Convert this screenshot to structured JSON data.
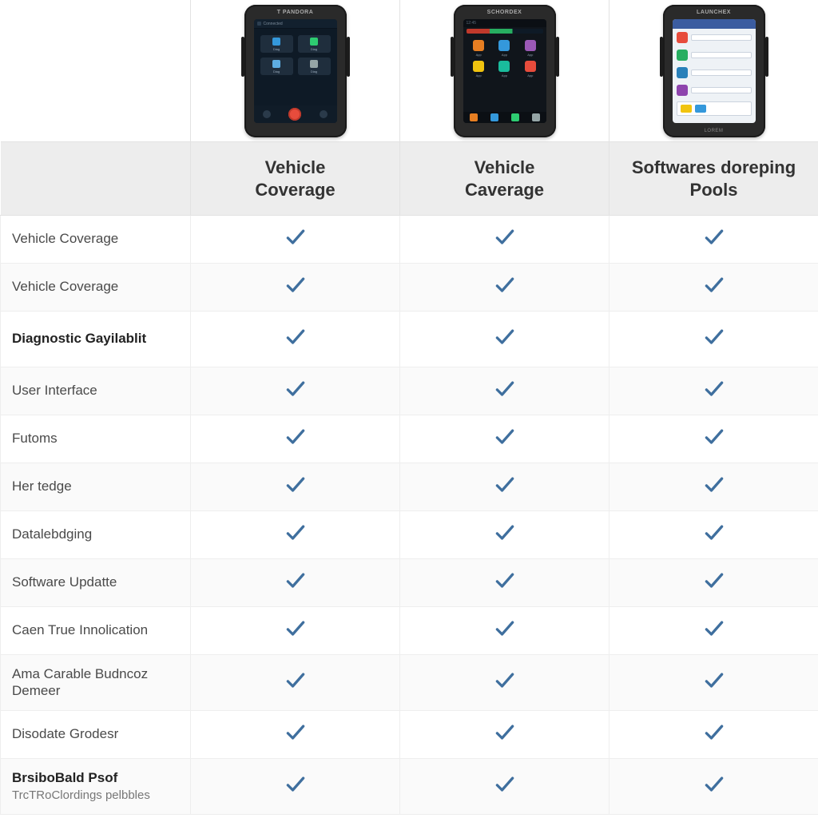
{
  "colors": {
    "check_stroke": "#3f6f9e",
    "header_bg": "#ededed",
    "row_alt_bg": "#fafafa",
    "border": "#e2e2e2",
    "text": "#333333"
  },
  "columns": [
    {
      "header_line1": "Vehicle",
      "header_line2": "Coverage",
      "device_brand": "T PANDORA"
    },
    {
      "header_line1": "Vehicle",
      "header_line2": "Caverage",
      "device_brand": "SCHORDEX"
    },
    {
      "header_line1": "Softwares doreping",
      "header_line2": "Pools",
      "device_brand": "LAUNCHEX",
      "device_footer": "LOREM"
    }
  ],
  "features": [
    {
      "label": "Vehicle Coverage",
      "bold": false,
      "checks": [
        true,
        true,
        true
      ]
    },
    {
      "label": "Vehicle Coverage",
      "bold": false,
      "checks": [
        true,
        true,
        true
      ]
    },
    {
      "label": "Diagnostic Gayilablit",
      "bold": true,
      "checks": [
        true,
        true,
        true
      ],
      "tall": true
    },
    {
      "label": "User Interface",
      "bold": false,
      "checks": [
        true,
        true,
        true
      ]
    },
    {
      "label": "Futoms",
      "bold": false,
      "checks": [
        true,
        true,
        true
      ]
    },
    {
      "label": "Her tedge",
      "bold": false,
      "checks": [
        true,
        true,
        true
      ]
    },
    {
      "label": "Datalebdging",
      "bold": false,
      "checks": [
        true,
        true,
        true
      ]
    },
    {
      "label": "Software Updatte",
      "bold": false,
      "checks": [
        true,
        true,
        true
      ]
    },
    {
      "label": "Caen True Innolication",
      "bold": false,
      "checks": [
        true,
        true,
        true
      ]
    },
    {
      "label": "Ama Carable Budncoz Demeer",
      "bold": false,
      "checks": [
        true,
        true,
        true
      ],
      "tall": true
    },
    {
      "label": "Disodate Grodesr",
      "bold": false,
      "checks": [
        true,
        true,
        true
      ]
    },
    {
      "label": "BrsiboBald Psof",
      "sublabel": "TrcTRoClordings pelbbles",
      "bold": true,
      "checks": [
        true,
        true,
        true
      ],
      "tall": true
    }
  ],
  "deviceA_tiles": [
    {
      "bg": "#1f2e3d",
      "icon": "#3498db"
    },
    {
      "bg": "#1f2e3d",
      "icon": "#2ecc71"
    },
    {
      "bg": "#1f2e3d",
      "icon": "#5dade2"
    },
    {
      "bg": "#1f2e3d",
      "icon": "#95a5a6"
    }
  ],
  "deviceB_apps": [
    {
      "color": "#e67e22"
    },
    {
      "color": "#3498db"
    },
    {
      "color": "#9b59b6"
    },
    {
      "color": "#f1c40f"
    },
    {
      "color": "#1abc9c"
    },
    {
      "color": "#e74c3c"
    }
  ],
  "deviceB_nav": [
    "#e67e22",
    "#3498db",
    "#2ecc71",
    "#95a5a6"
  ],
  "deviceC_icons": [
    {
      "color": "#e74c3c"
    },
    {
      "color": "#27ae60"
    },
    {
      "color": "#2980b9"
    },
    {
      "color": "#8e44ad"
    }
  ],
  "deviceC_chips": [
    "#f1c40f",
    "#3498db"
  ]
}
